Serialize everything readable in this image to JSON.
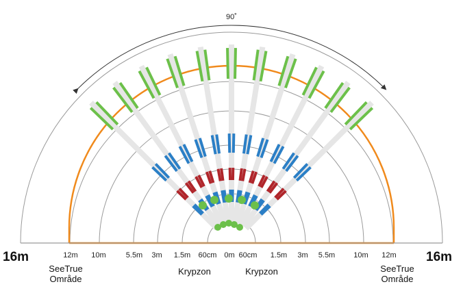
{
  "diagram": {
    "angle_label": "90˚",
    "end_labels": {
      "left": "16m",
      "right": "16m"
    },
    "distance_labels": {
      "left": [
        "12m",
        "10m",
        "5.5m",
        "3m",
        "1.5m",
        "60cm",
        "0m"
      ],
      "right": [
        "60cm",
        "1.5m",
        "3m",
        "5.5m",
        "10m",
        "12m"
      ]
    },
    "zone_labels": {
      "seetrue_left": [
        "SeeTrue",
        "Område"
      ],
      "krypzon_left": "Krypzon",
      "krypzon_right": "Krypzon",
      "seetrue_right": [
        "SeeTrue",
        "Område"
      ]
    },
    "colors": {
      "green_zone": "#6cc04a",
      "blue_zone": "#2b7fc6",
      "red_zone": "#b0262b",
      "orange_boundary": "#f08a1c",
      "ring_lines": "#9a9a9a",
      "ground_line": "#999999"
    }
  }
}
